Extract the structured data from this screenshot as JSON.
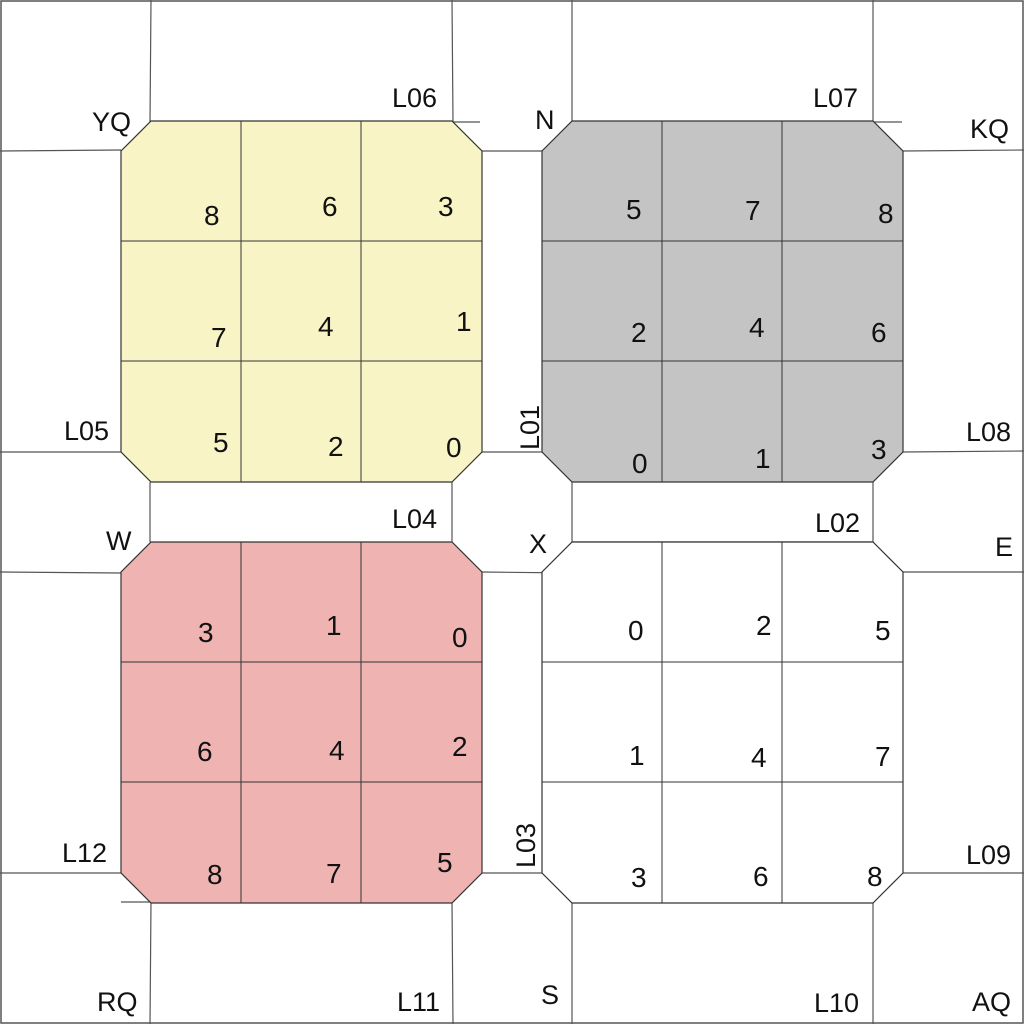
{
  "colors": {
    "block_yellow": "#f8f4c6",
    "block_gray": "#c4c4c4",
    "block_red": "#efb4b2",
    "block_white": "#ffffff",
    "lines": "#555555",
    "text": "#111111"
  },
  "labels": {
    "yq": "YQ",
    "l06": "L06",
    "n": "N",
    "l07": "L07",
    "kq": "KQ",
    "l05": "L05",
    "l01": "L01",
    "l08": "L08",
    "w": "W",
    "l04": "L04",
    "x": "X",
    "l02": "L02",
    "e": "E",
    "l12": "L12",
    "l03": "L03",
    "l09": "L09",
    "rq": "RQ",
    "l11": "L11",
    "s": "S",
    "l10": "L10",
    "aq": "AQ"
  },
  "blocks": {
    "top_left": {
      "fill": "yellow",
      "cells": [
        "8",
        "6",
        "3",
        "7",
        "4",
        "1",
        "5",
        "2",
        "0"
      ]
    },
    "top_right": {
      "fill": "gray",
      "cells": [
        "5",
        "7",
        "8",
        "2",
        "4",
        "6",
        "0",
        "1",
        "3"
      ]
    },
    "bottom_left": {
      "fill": "red",
      "cells": [
        "3",
        "1",
        "0",
        "6",
        "4",
        "2",
        "8",
        "7",
        "5"
      ]
    },
    "bottom_right": {
      "fill": "white",
      "cells": [
        "0",
        "2",
        "5",
        "1",
        "4",
        "7",
        "3",
        "6",
        "8"
      ]
    }
  }
}
